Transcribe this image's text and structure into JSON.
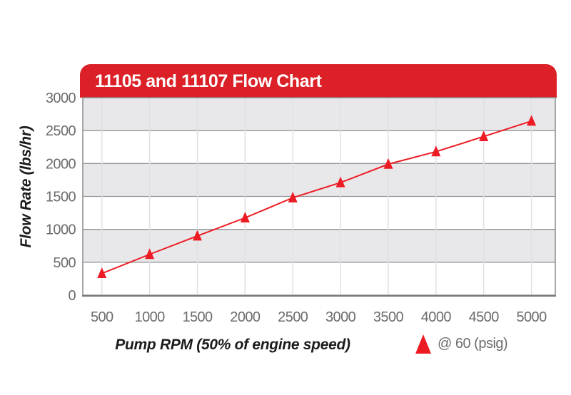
{
  "header": {
    "title": "11105 and 11107 Flow Chart"
  },
  "axes": {
    "x_label": "Pump RPM (50% of engine speed)",
    "y_label": "Flow Rate (lbs/hr)"
  },
  "legend": {
    "marker_icon": "triangle-up-icon",
    "marker_color": "#ED1C24",
    "label": "@ 60 (psig)"
  },
  "colors": {
    "banner_red": "#DB2127",
    "series_red": "#ED1C24",
    "band_gray": "#E8E8EA",
    "grid_line": "#939598",
    "vertical_grid": "#DFE0E2",
    "frame": "#8A8C8E",
    "axis_bottom": "#77787A",
    "tick_text": "#6B6C6E"
  },
  "chart_data": {
    "type": "line",
    "title": "11105 and 11107 Flow Chart",
    "xlabel": "Pump RPM (50% of engine speed)",
    "ylabel": "Flow Rate (lbs/hr)",
    "x": [
      500,
      1000,
      1500,
      2000,
      2500,
      3000,
      3500,
      4000,
      4500,
      5000
    ],
    "series": [
      {
        "name": "@ 60 (psig)",
        "marker": "triangle-up",
        "color": "#ED1C24",
        "values": [
          330,
          620,
          900,
          1175,
          1480,
          1710,
          1990,
          2180,
          2410,
          2645
        ]
      }
    ],
    "xticks": [
      500,
      1000,
      1500,
      2000,
      2500,
      3000,
      3500,
      4000,
      4500,
      5000
    ],
    "yticks": [
      0,
      500,
      1000,
      1500,
      2000,
      2500,
      3000
    ],
    "xlim": [
      300,
      5250
    ],
    "ylim": [
      0,
      3000
    ],
    "ytick_step": 500,
    "grid": {
      "horizontal": true,
      "vertical": true,
      "row_bands": "alternating gray/white, gray below 3000/2000/1000 lines"
    },
    "legend_position": "bottom-right"
  }
}
